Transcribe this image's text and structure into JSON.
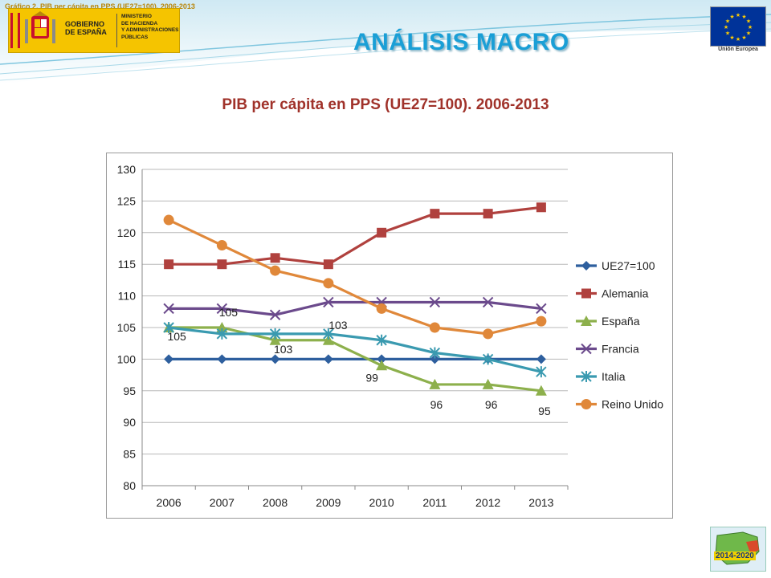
{
  "header": {
    "caption": "Gráfico 2. PIB per cápita en PPS (UE27=100). 2006-2013",
    "title": "ANÁLISIS MACRO",
    "gov_logo": {
      "line1": "GOBIERNO",
      "line2": "DE ESPAÑA",
      "ministry": [
        "MINISTERIO",
        "DE HACIENDA",
        "Y ADMINISTRACIONES",
        "PÚBLICAS"
      ]
    },
    "eu_label": "Unión Europea"
  },
  "badge": {
    "text": "2014-2020"
  },
  "chart_data": {
    "type": "line",
    "title": "PIB per cápita en PPS (UE27=100). 2006-2013",
    "categories": [
      "2006",
      "2007",
      "2008",
      "2009",
      "2010",
      "2011",
      "2012",
      "2013"
    ],
    "ylim": [
      80,
      130
    ],
    "yticks": [
      80,
      85,
      90,
      95,
      100,
      105,
      110,
      115,
      120,
      125,
      130
    ],
    "grid": true,
    "legend_position": "right",
    "series": [
      {
        "name": "UE27=100",
        "color": "#2e5f9e",
        "marker": "diamond",
        "values": [
          100,
          100,
          100,
          100,
          100,
          100,
          100,
          100
        ]
      },
      {
        "name": "Alemania",
        "color": "#b0413e",
        "marker": "square",
        "values": [
          115,
          115,
          116,
          115,
          120,
          123,
          123,
          124
        ]
      },
      {
        "name": "España",
        "color": "#8db04c",
        "marker": "triangle",
        "values": [
          105,
          105,
          103,
          103,
          99,
          96,
          96,
          95
        ]
      },
      {
        "name": "Francia",
        "color": "#6b4a8c",
        "marker": "x",
        "values": [
          108,
          108,
          107,
          109,
          109,
          109,
          109,
          108
        ]
      },
      {
        "name": "Italia",
        "color": "#3a9ab0",
        "marker": "star",
        "values": [
          105,
          104,
          104,
          104,
          103,
          101,
          100,
          98
        ]
      },
      {
        "name": "Reino Unido",
        "color": "#e0883a",
        "marker": "circle",
        "values": [
          122,
          118,
          114,
          112,
          108,
          105,
          104,
          106
        ]
      }
    ],
    "data_labels": [
      {
        "series": "España",
        "index": 0,
        "text": "105"
      },
      {
        "series": "España",
        "index": 1,
        "text": "105"
      },
      {
        "series": "España",
        "index": 2,
        "text": "103"
      },
      {
        "series": "España",
        "index": 3,
        "text": "103"
      },
      {
        "series": "España",
        "index": 4,
        "text": "99"
      },
      {
        "series": "España",
        "index": 5,
        "text": "96"
      },
      {
        "series": "España",
        "index": 6,
        "text": "96"
      },
      {
        "series": "España",
        "index": 7,
        "text": "95"
      }
    ]
  }
}
